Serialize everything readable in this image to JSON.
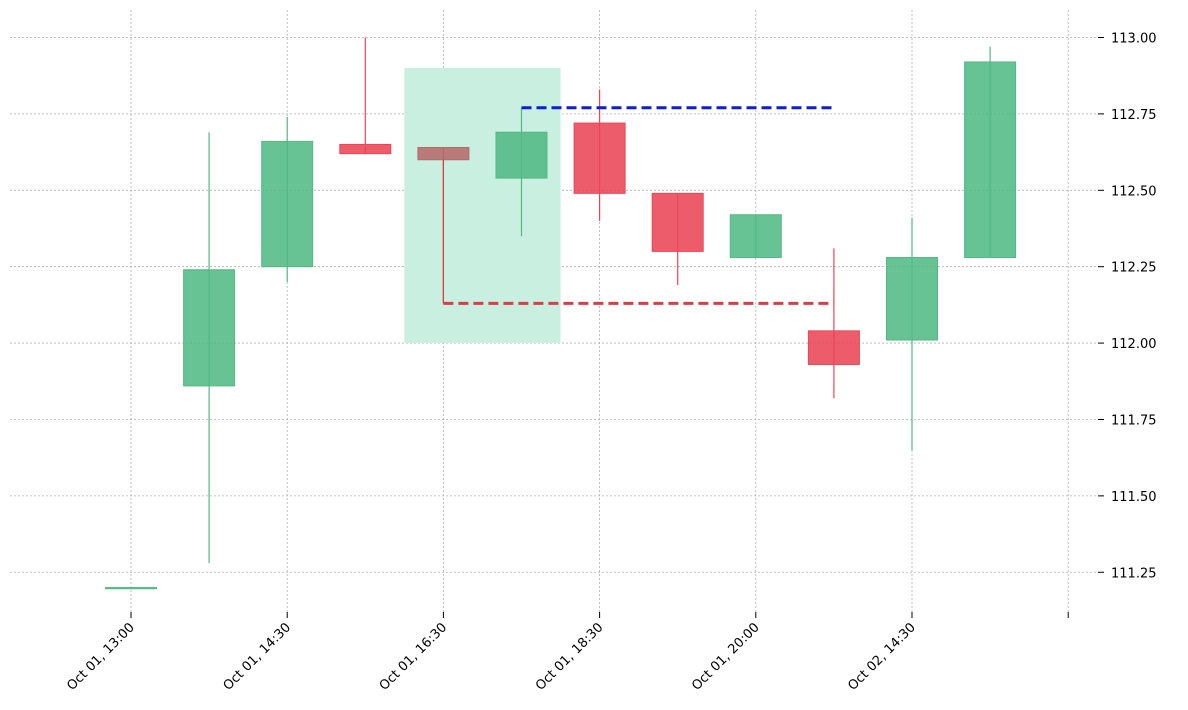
{
  "chart_data": {
    "type": "candlestick",
    "title": "",
    "xlabel": "",
    "ylabel": "",
    "ylim": [
      111.12,
      113.09
    ],
    "grid": true,
    "y_ticks": [
      111.25,
      111.5,
      111.75,
      112.0,
      112.25,
      112.5,
      112.75,
      113.0
    ],
    "y_tick_labels": [
      "111.25",
      "111.50",
      "111.75",
      "112.00",
      "112.25",
      "112.50",
      "112.75",
      "113.00"
    ],
    "x_tick_positions": [
      0,
      2,
      4,
      6,
      8,
      10,
      12
    ],
    "x_tick_labels": [
      "Oct 01, 13:00",
      "Oct 01, 14:30",
      "Oct 01, 16:30",
      "Oct 01, 18:30",
      "Oct 01, 20:00",
      "Oct 02, 14:30",
      ""
    ],
    "candles": [
      {
        "index": 0,
        "open": 111.2,
        "high": 111.2,
        "low": 111.2,
        "close": 111.2
      },
      {
        "index": 1,
        "open": 111.86,
        "high": 112.69,
        "low": 111.28,
        "close": 112.24
      },
      {
        "index": 2,
        "open": 112.25,
        "high": 112.74,
        "low": 112.2,
        "close": 112.66
      },
      {
        "index": 3,
        "open": 112.65,
        "high": 113.0,
        "low": 112.62,
        "close": 112.62
      },
      {
        "index": 4,
        "open": 112.64,
        "high": 112.64,
        "low": 112.13,
        "close": 112.6
      },
      {
        "index": 5,
        "open": 112.54,
        "high": 112.77,
        "low": 112.35,
        "close": 112.69
      },
      {
        "index": 6,
        "open": 112.72,
        "high": 112.83,
        "low": 112.4,
        "close": 112.49
      },
      {
        "index": 7,
        "open": 112.49,
        "high": 112.49,
        "low": 112.19,
        "close": 112.3
      },
      {
        "index": 8,
        "open": 112.28,
        "high": 112.42,
        "low": 112.28,
        "close": 112.42
      },
      {
        "index": 9,
        "open": 112.04,
        "high": 112.31,
        "low": 111.82,
        "close": 111.93
      },
      {
        "index": 10,
        "open": 112.01,
        "high": 112.41,
        "low": 111.65,
        "close": 112.28
      },
      {
        "index": 11,
        "open": 112.28,
        "high": 112.97,
        "low": 112.28,
        "close": 112.92
      }
    ],
    "special_candle_index": 4,
    "highlight_zone": {
      "x_from": 3.5,
      "x_to": 5.5,
      "y_from": 112.0,
      "y_to": 112.9
    },
    "level_lines": [
      {
        "level": "upper",
        "y": 112.77,
        "x_from": 5,
        "x_to": 9
      },
      {
        "level": "lower",
        "y": 112.13,
        "x_from": 4,
        "x_to": 9
      }
    ],
    "colors": {
      "up": "#52b985",
      "down": "#ea4657",
      "special": "#b56b6b",
      "zone": "#c8efdf",
      "upper_line": "#0d1ed6",
      "lower_line": "#df3a4a",
      "grid": "#b0b0b0",
      "axis": "#000000"
    }
  }
}
